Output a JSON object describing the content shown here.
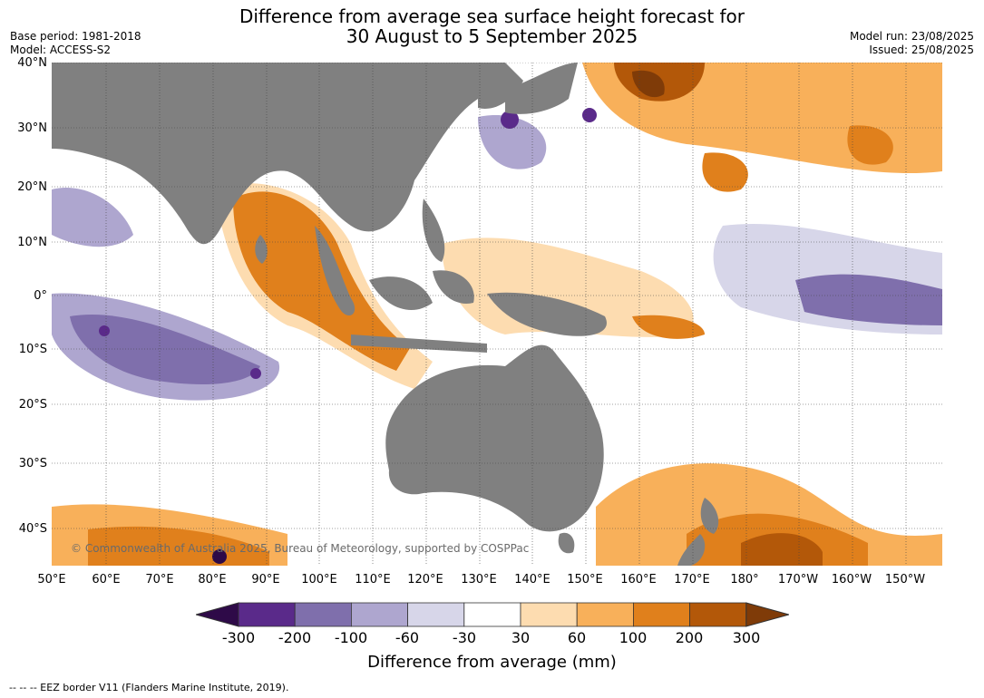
{
  "header": {
    "title_line1": "Difference from average sea surface height forecast for",
    "title_line2": "30 August to 5 September 2025",
    "base_period": "Base period: 1981-2018",
    "model": "Model: ACCESS-S2",
    "model_run": "Model run: 23/08/2025",
    "issued": "Issued: 25/08/2025"
  },
  "map": {
    "latitude_labels": [
      "40°N",
      "30°N",
      "20°N",
      "10°N",
      "0°",
      "10°S",
      "20°S",
      "30°S",
      "40°S"
    ],
    "longitude_labels": [
      "50°E",
      "60°E",
      "70°E",
      "80°E",
      "90°E",
      "100°E",
      "110°E",
      "120°E",
      "130°E",
      "140°E",
      "150°E",
      "160°E",
      "170°E",
      "180°",
      "170°W",
      "160°W",
      "150°W"
    ],
    "land_color": "#808080",
    "credit": "© Commonwealth of Australia 2025, Bureau of Meteorology, supported by COSPPac"
  },
  "colorbar": {
    "ticks": [
      "-300",
      "-200",
      "-100",
      "-60",
      "-30",
      "30",
      "60",
      "100",
      "200",
      "300"
    ],
    "colors": [
      "#2e0a48",
      "#5a2a8a",
      "#7f6fac",
      "#aea6cf",
      "#d7d6e9",
      "#ffffff",
      "#fddcb0",
      "#f8b05a",
      "#e0801c",
      "#b35809",
      "#7f3b08"
    ],
    "label": "Difference from average (mm)"
  },
  "footer": {
    "eez_note": "--  --  -- EEZ border V11 (Flanders Marine Institute, 2019)."
  }
}
